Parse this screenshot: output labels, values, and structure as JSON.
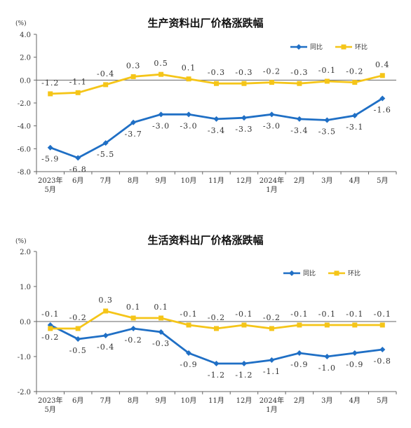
{
  "chart_data": [
    {
      "type": "line",
      "title": "生产资料出厂价格涨跌幅",
      "unit": "(%)",
      "ylim": [
        -8.0,
        4.0
      ],
      "yticks": [
        "4.0",
        "2.0",
        "0.0",
        "-2.0",
        "-4.0",
        "-6.0",
        "-8.0"
      ],
      "ytick_values": [
        4,
        2,
        0,
        -2,
        -4,
        -6,
        -8
      ],
      "categories": [
        [
          "2023年",
          "5月"
        ],
        [
          "6月"
        ],
        [
          "7月"
        ],
        [
          "8月"
        ],
        [
          "9月"
        ],
        [
          "10月"
        ],
        [
          "11月"
        ],
        [
          "12月"
        ],
        [
          "2024年",
          "1月"
        ],
        [
          "2月"
        ],
        [
          "3月"
        ],
        [
          "4月"
        ],
        [
          "5月"
        ]
      ],
      "legend_position": "top-right",
      "grid": false,
      "series": [
        {
          "name": "同比",
          "color": "#1f6fc5",
          "marker": "diamond",
          "values": [
            -5.9,
            -6.8,
            -5.5,
            -3.7,
            -3.0,
            -3.0,
            -3.4,
            -3.3,
            -3.0,
            -3.4,
            -3.5,
            -3.1,
            -1.6
          ],
          "labels": [
            "-5.9",
            "-6.8",
            "-5.5",
            "-3.7",
            "-3.0",
            "-3.0",
            "-3.4",
            "-3.3",
            "-3.0",
            "-3.4",
            "-3.5",
            "-3.1",
            "-1.6"
          ]
        },
        {
          "name": "环比",
          "color": "#f5c518",
          "marker": "square",
          "values": [
            -1.2,
            -1.1,
            -0.4,
            0.3,
            0.5,
            0.1,
            -0.3,
            -0.3,
            -0.2,
            -0.3,
            -0.1,
            -0.2,
            0.4
          ],
          "labels": [
            "-1.2",
            "-1.1",
            "-0.4",
            "0.3",
            "0.5",
            "0.1",
            "-0.3",
            "-0.3",
            "-0.2",
            "-0.3",
            "-0.1",
            "-0.2",
            "0.4"
          ]
        }
      ]
    },
    {
      "type": "line",
      "title": "生活资料出厂价格涨跌幅",
      "unit": "(%)",
      "ylim": [
        -2.0,
        2.0
      ],
      "yticks": [
        "2.0",
        "1.0",
        "0.0",
        "-1.0",
        "-2.0"
      ],
      "ytick_values": [
        2,
        1,
        0,
        -1,
        -2
      ],
      "categories": [
        [
          "2023年",
          "5月"
        ],
        [
          "6月"
        ],
        [
          "7月"
        ],
        [
          "8月"
        ],
        [
          "9月"
        ],
        [
          "10月"
        ],
        [
          "11月"
        ],
        [
          "12月"
        ],
        [
          "2024年",
          "1月"
        ],
        [
          "2月"
        ],
        [
          "3月"
        ],
        [
          "4月"
        ],
        [
          "5月"
        ]
      ],
      "legend_position": "top-right",
      "grid": false,
      "series": [
        {
          "name": "同比",
          "color": "#1f6fc5",
          "marker": "diamond",
          "values": [
            -0.1,
            -0.5,
            -0.4,
            -0.2,
            -0.3,
            -0.9,
            -1.2,
            -1.2,
            -1.1,
            -0.9,
            -1.0,
            -0.9,
            -0.8
          ],
          "labels": [
            "-0.1",
            "-0.5",
            "-0.4",
            "-0.2",
            "-0.3",
            "-0.9",
            "-1.2",
            "-1.2",
            "-1.1",
            "-0.9",
            "-1.0",
            "-0.9",
            "-0.8"
          ]
        },
        {
          "name": "环比",
          "color": "#f5c518",
          "marker": "square",
          "values": [
            -0.2,
            -0.2,
            0.3,
            0.1,
            0.1,
            -0.1,
            -0.2,
            -0.1,
            -0.2,
            -0.1,
            -0.1,
            -0.1,
            -0.1
          ],
          "labels": [
            "-0.2",
            "-0.2",
            "0.3",
            "0.1",
            "0.1",
            "-0.1",
            "-0.2",
            "-0.1",
            "-0.2",
            "-0.1",
            "-0.1",
            "-0.1",
            "-0.1"
          ]
        }
      ]
    }
  ]
}
